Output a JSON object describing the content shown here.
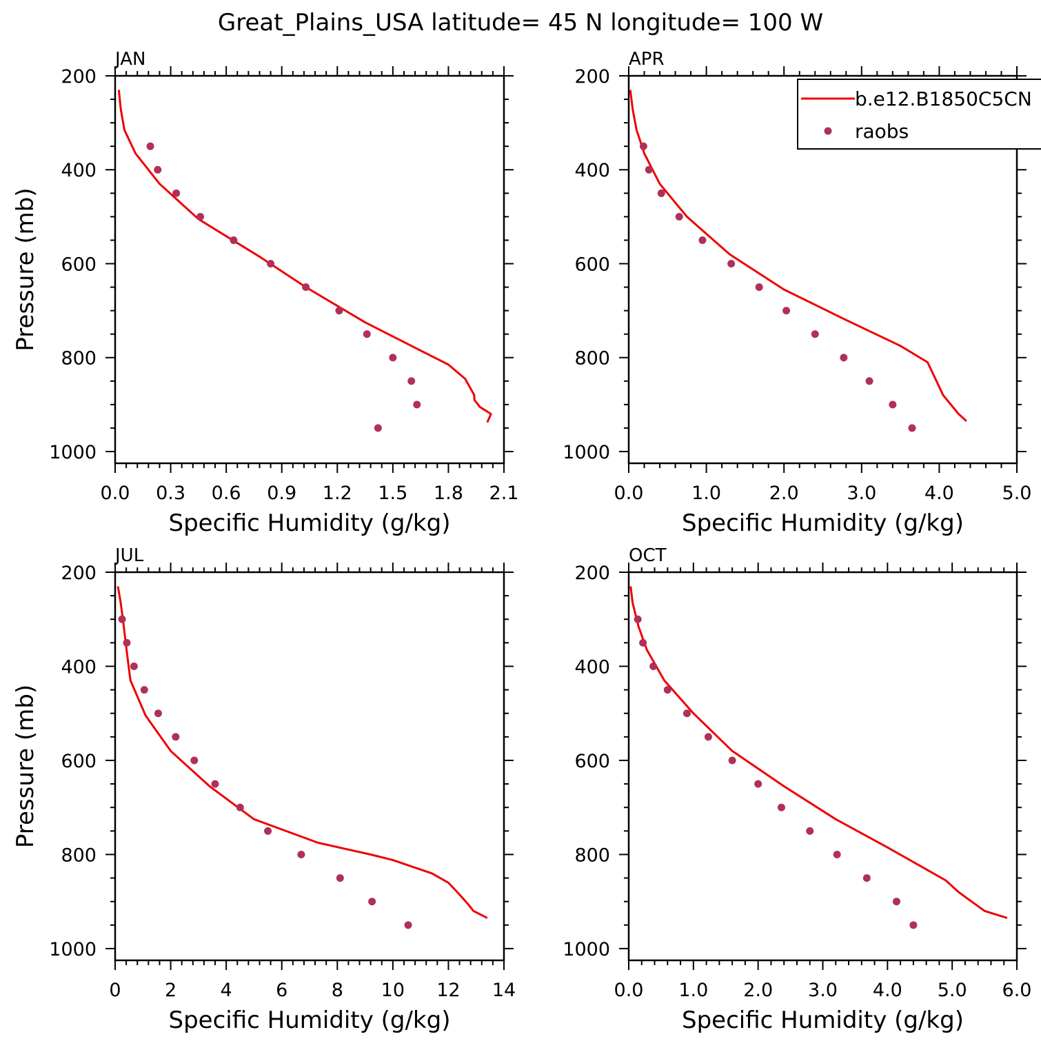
{
  "title": "Great_Plains_USA  latitude= 45 N longitude= 100 W",
  "colors": {
    "model_line": "#ee0000",
    "raobs_marker": "#b0305a",
    "axis": "#000000"
  },
  "legend": {
    "placement": "top-right of APR panel",
    "entries": [
      {
        "label": "b.e12.B1850C5CN",
        "style": "line",
        "color": "#ee0000"
      },
      {
        "label": "raobs",
        "style": "marker",
        "color": "#b0305a"
      }
    ]
  },
  "chart_data": [
    {
      "panel": "JAN",
      "type": "line",
      "xlabel": "Specific Humidity (g/kg)",
      "ylabel": "Pressure (mb)",
      "xlim": [
        0,
        2.1
      ],
      "ylim": [
        200,
        1025
      ],
      "y_inverted": true,
      "xticks": [
        0.0,
        0.3,
        0.6,
        0.9,
        1.2,
        1.5,
        1.8,
        2.1
      ],
      "xtick_labels": [
        "0.0",
        "0.3",
        "0.6",
        "0.9",
        "1.2",
        "1.5",
        "1.8",
        "2.1"
      ],
      "yticks": [
        200,
        400,
        600,
        800,
        1000
      ],
      "ytick_labels": [
        "200",
        "400",
        "600",
        "800",
        "1000"
      ],
      "series": [
        {
          "name": "b.e12.B1850C5CN",
          "kind": "line",
          "x": [
            0.02,
            0.03,
            0.05,
            0.11,
            0.24,
            0.45,
            0.78,
            1.03,
            1.35,
            1.6,
            1.8,
            1.89,
            1.94,
            1.94,
            1.97,
            2.03,
            2.01
          ],
          "y": [
            230,
            270,
            315,
            365,
            430,
            505,
            585,
            650,
            725,
            775,
            815,
            845,
            880,
            890,
            905,
            920,
            938
          ]
        },
        {
          "name": "raobs",
          "kind": "scatter",
          "x": [
            0.19,
            0.23,
            0.33,
            0.46,
            0.64,
            0.84,
            1.03,
            1.21,
            1.36,
            1.5,
            1.6,
            1.63,
            1.42
          ],
          "y": [
            350,
            400,
            450,
            500,
            550,
            600,
            650,
            700,
            750,
            800,
            850,
            900,
            950
          ]
        }
      ]
    },
    {
      "panel": "APR",
      "type": "line",
      "xlabel": "Specific Humidity (g/kg)",
      "ylabel": "",
      "xlim": [
        0,
        5.0
      ],
      "ylim": [
        200,
        1025
      ],
      "y_inverted": true,
      "xticks": [
        0,
        1,
        2,
        3,
        4,
        5
      ],
      "xtick_labels": [
        "0.0",
        "1.0",
        "2.0",
        "3.0",
        "4.0",
        "5.0"
      ],
      "yticks": [
        200,
        400,
        600,
        800,
        1000
      ],
      "ytick_labels": [
        "200",
        "400",
        "600",
        "800",
        "1000"
      ],
      "series": [
        {
          "name": "b.e12.B1850C5CN",
          "kind": "line",
          "x": [
            0.02,
            0.05,
            0.1,
            0.2,
            0.4,
            0.75,
            1.3,
            2.0,
            2.8,
            3.5,
            3.85,
            3.95,
            4.05,
            4.25,
            4.35
          ],
          "y": [
            230,
            270,
            315,
            365,
            430,
            500,
            580,
            655,
            720,
            775,
            810,
            845,
            880,
            920,
            935
          ]
        },
        {
          "name": "raobs",
          "kind": "scatter",
          "x": [
            0.19,
            0.26,
            0.42,
            0.65,
            0.95,
            1.32,
            1.68,
            2.03,
            2.4,
            2.77,
            3.1,
            3.4,
            3.65
          ],
          "y": [
            350,
            400,
            450,
            500,
            550,
            600,
            650,
            700,
            750,
            800,
            850,
            900,
            950
          ]
        }
      ]
    },
    {
      "panel": "JUL",
      "type": "line",
      "xlabel": "Specific Humidity (g/kg)",
      "ylabel": "Pressure (mb)",
      "xlim": [
        0,
        14
      ],
      "ylim": [
        200,
        1025
      ],
      "y_inverted": true,
      "xticks": [
        0,
        2,
        4,
        6,
        8,
        10,
        12,
        14
      ],
      "xtick_labels": [
        "0",
        "2",
        "4",
        "6",
        "8",
        "10",
        "12",
        "14"
      ],
      "yticks": [
        200,
        400,
        600,
        800,
        1000
      ],
      "ytick_labels": [
        "200",
        "400",
        "600",
        "800",
        "1000"
      ],
      "series": [
        {
          "name": "b.e12.B1850C5CN",
          "kind": "line",
          "x": [
            0.1,
            0.2,
            0.3,
            0.4,
            0.55,
            1.1,
            2.0,
            3.4,
            5.0,
            7.3,
            9.2,
            10.0,
            11.4,
            12.0,
            12.4,
            12.7,
            12.9,
            13.4
          ],
          "y": [
            230,
            265,
            310,
            360,
            430,
            505,
            580,
            655,
            725,
            775,
            800,
            812,
            840,
            860,
            885,
            905,
            920,
            935
          ]
        },
        {
          "name": "raobs",
          "kind": "scatter",
          "x": [
            0.25,
            0.42,
            0.68,
            1.05,
            1.55,
            2.18,
            2.85,
            3.6,
            4.5,
            5.5,
            6.7,
            8.1,
            9.25,
            10.55
          ],
          "y": [
            300,
            350,
            400,
            450,
            500,
            550,
            600,
            650,
            700,
            750,
            800,
            850,
            900,
            950
          ]
        }
      ]
    },
    {
      "panel": "OCT",
      "type": "line",
      "xlabel": "Specific Humidity (g/kg)",
      "ylabel": "",
      "xlim": [
        0,
        6.0
      ],
      "ylim": [
        200,
        1025
      ],
      "y_inverted": true,
      "xticks": [
        0,
        1,
        2,
        3,
        4,
        5,
        6
      ],
      "xtick_labels": [
        "0.0",
        "1.0",
        "2.0",
        "3.0",
        "4.0",
        "5.0",
        "6.0"
      ],
      "yticks": [
        200,
        400,
        600,
        800,
        1000
      ],
      "ytick_labels": [
        "200",
        "400",
        "600",
        "800",
        "1000"
      ],
      "series": [
        {
          "name": "b.e12.B1850C5CN",
          "kind": "line",
          "x": [
            0.03,
            0.06,
            0.15,
            0.28,
            0.55,
            1.0,
            1.6,
            2.4,
            3.2,
            4.0,
            4.9,
            5.1,
            5.3,
            5.5,
            5.85
          ],
          "y": [
            230,
            265,
            315,
            365,
            430,
            500,
            580,
            655,
            725,
            785,
            855,
            880,
            900,
            920,
            935
          ]
        },
        {
          "name": "raobs",
          "kind": "scatter",
          "x": [
            0.14,
            0.22,
            0.38,
            0.6,
            0.9,
            1.23,
            1.6,
            2.0,
            2.36,
            2.8,
            3.22,
            3.68,
            4.14,
            4.4
          ],
          "y": [
            300,
            350,
            400,
            450,
            500,
            550,
            600,
            650,
            700,
            750,
            800,
            850,
            900,
            950
          ]
        }
      ]
    }
  ]
}
